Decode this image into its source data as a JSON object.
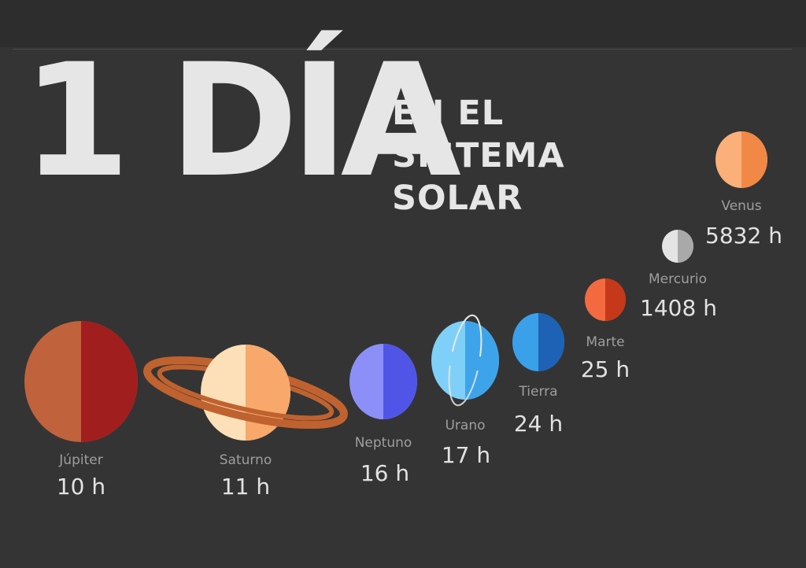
{
  "title": {
    "big": "1 DÍA",
    "sub": [
      "EN EL",
      "SISTEMA",
      "SOLAR"
    ]
  },
  "planets": [
    {
      "name": "Júpiter",
      "hours": "10 h",
      "colors": [
        "#c0623b",
        "#a11e1e"
      ]
    },
    {
      "name": "Saturno",
      "hours": "11 h",
      "colors": [
        "#fde0b8",
        "#f7a86a"
      ],
      "ring": "#c0622f"
    },
    {
      "name": "Neptuno",
      "hours": "16 h",
      "colors": [
        "#8d8ff8",
        "#5055e8"
      ]
    },
    {
      "name": "Urano",
      "hours": "17 h",
      "colors": [
        "#7fd0f8",
        "#3ea4ea"
      ],
      "ring": "#e8e8e8"
    },
    {
      "name": "Tierra",
      "hours": "24 h",
      "colors": [
        "#3aa0ea",
        "#1d62b4"
      ]
    },
    {
      "name": "Marte",
      "hours": "25 h",
      "colors": [
        "#f46a40",
        "#c5381a"
      ]
    },
    {
      "name": "Mercurio",
      "hours": "1408 h",
      "colors": [
        "#e4e4e4",
        "#a9a9a9"
      ]
    },
    {
      "name": "Venus",
      "hours": "5832 h",
      "colors": [
        "#fbb07a",
        "#f28846"
      ]
    }
  ]
}
